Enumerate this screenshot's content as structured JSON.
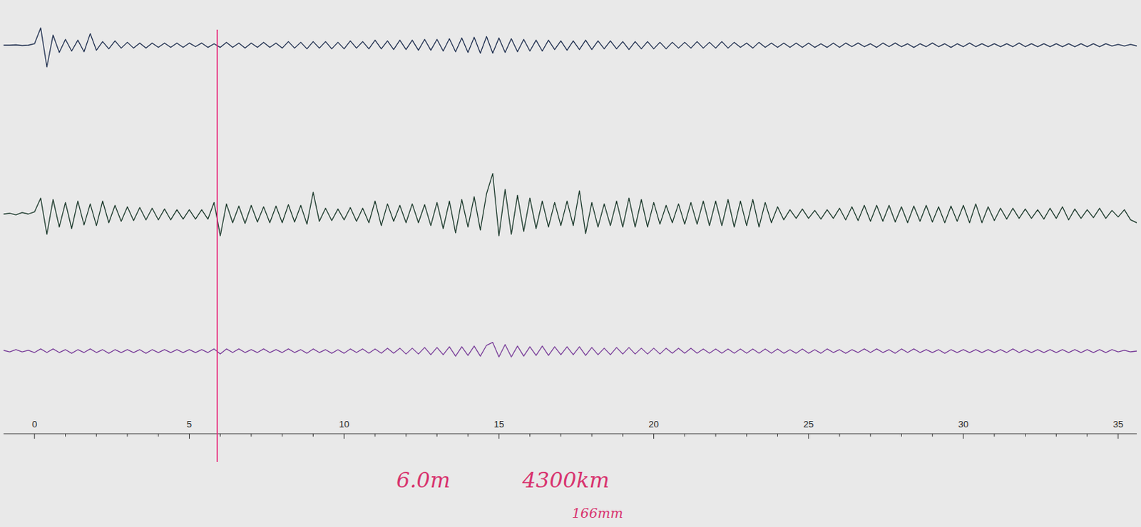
{
  "chart_data": {
    "type": "line",
    "x": [
      -1,
      -0.8,
      -0.6,
      -0.4,
      -0.2,
      0,
      0.2,
      0.4,
      0.6,
      0.8,
      1,
      1.2,
      1.4,
      1.6,
      1.8,
      2,
      2.2,
      2.4,
      2.6,
      2.8,
      3,
      3.2,
      3.4,
      3.6,
      3.8,
      4,
      4.2,
      4.4,
      4.6,
      4.8,
      5,
      5.2,
      5.4,
      5.6,
      5.8,
      6,
      6.2,
      6.4,
      6.6,
      6.8,
      7,
      7.2,
      7.4,
      7.6,
      7.8,
      8,
      8.2,
      8.4,
      8.6,
      8.8,
      9,
      9.2,
      9.4,
      9.6,
      9.8,
      10,
      10.2,
      10.4,
      10.6,
      10.8,
      11,
      11.2,
      11.4,
      11.6,
      11.8,
      12,
      12.2,
      12.4,
      12.6,
      12.8,
      13,
      13.2,
      13.4,
      13.6,
      13.8,
      14,
      14.2,
      14.4,
      14.6,
      14.8,
      15,
      15.2,
      15.4,
      15.6,
      15.8,
      16,
      16.2,
      16.4,
      16.6,
      16.8,
      17,
      17.2,
      17.4,
      17.6,
      17.8,
      18,
      18.2,
      18.4,
      18.6,
      18.8,
      19,
      19.2,
      19.4,
      19.6,
      19.8,
      20,
      20.2,
      20.4,
      20.6,
      20.8,
      21,
      21.2,
      21.4,
      21.6,
      21.8,
      22,
      22.2,
      22.4,
      22.6,
      22.8,
      23,
      23.2,
      23.4,
      23.6,
      23.8,
      24,
      24.2,
      24.4,
      24.6,
      24.8,
      25,
      25.2,
      25.4,
      25.6,
      25.8,
      26,
      26.2,
      26.4,
      26.6,
      26.8,
      27,
      27.2,
      27.4,
      27.6,
      27.8,
      28,
      28.2,
      28.4,
      28.6,
      28.8,
      29,
      29.2,
      29.4,
      29.6,
      29.8,
      30,
      30.2,
      30.4,
      30.6,
      30.8,
      31,
      31.2,
      31.4,
      31.6,
      31.8,
      32,
      32.2,
      32.4,
      32.6,
      32.8,
      33,
      33.2,
      33.4,
      33.6,
      33.8,
      34,
      34.2,
      34.4,
      34.6,
      34.8,
      35,
      35.2,
      35.4,
      35.6
    ],
    "series": [
      {
        "color": "#1f2f4f",
        "values": [
          0,
          0,
          0.5,
          -0.5,
          0,
          2,
          24,
          -30,
          14,
          -10,
          8,
          -8,
          7,
          -9,
          16,
          -7,
          5,
          -5,
          6,
          -4,
          4,
          -4,
          3,
          -4,
          3,
          -3,
          3,
          -3,
          3,
          -3,
          3,
          -2,
          3,
          -3,
          2,
          -3,
          4,
          -3,
          3,
          -4,
          3,
          -3,
          4,
          -3,
          3,
          -4,
          5,
          -4,
          4,
          -5,
          5,
          -4,
          5,
          -5,
          4,
          -5,
          6,
          -4,
          5,
          -5,
          7,
          -5,
          6,
          -6,
          7,
          -6,
          7,
          -7,
          8,
          -7,
          8,
          -8,
          9,
          -9,
          10,
          -10,
          11,
          -11,
          12,
          -11,
          10,
          -10,
          9,
          -9,
          8,
          -8,
          7,
          -8,
          7,
          -6,
          6,
          -7,
          6,
          -6,
          7,
          -6,
          6,
          -5,
          6,
          -5,
          5,
          -6,
          5,
          -5,
          5,
          -5,
          4,
          -5,
          4,
          -4,
          4,
          -4,
          5,
          -4,
          4,
          -4,
          5,
          -4,
          4,
          -3,
          3,
          -4,
          4,
          -3,
          3,
          -3,
          3,
          -3,
          3,
          -3,
          3,
          -3,
          2,
          -3,
          3,
          -3,
          3,
          -2,
          3,
          -2,
          2,
          -3,
          3,
          -2,
          3,
          -2,
          2,
          -3,
          2,
          -2,
          3,
          -2,
          2,
          -3,
          2,
          -2,
          3,
          -2,
          2,
          -2,
          2,
          -2,
          2,
          -2,
          3,
          -2,
          2,
          -2,
          2,
          -2,
          2,
          -2,
          2,
          -2,
          2,
          -2,
          2,
          -2,
          2,
          -1,
          1,
          -1,
          1,
          -1
        ]
      },
      {
        "color": "#1c3a2c",
        "values": [
          0,
          1,
          -1,
          2,
          0,
          3,
          22,
          -28,
          20,
          -18,
          16,
          -20,
          18,
          -15,
          14,
          -16,
          18,
          -12,
          12,
          -10,
          10,
          -9,
          9,
          -8,
          8,
          -8,
          7,
          -8,
          6,
          -7,
          6,
          -7,
          6,
          -7,
          16,
          -30,
          14,
          -12,
          11,
          -13,
          12,
          -11,
          10,
          -12,
          11,
          -12,
          13,
          -11,
          12,
          -14,
          30,
          -10,
          8,
          -9,
          7,
          -8,
          9,
          -10,
          8,
          -12,
          18,
          -16,
          14,
          -10,
          12,
          -12,
          14,
          -12,
          13,
          -16,
          16,
          -20,
          18,
          -26,
          20,
          -18,
          24,
          -22,
          28,
          56,
          -30,
          34,
          -28,
          26,
          -24,
          22,
          -20,
          18,
          -18,
          16,
          -16,
          18,
          -16,
          32,
          -27,
          16,
          -18,
          14,
          -16,
          18,
          -18,
          22,
          -18,
          20,
          -18,
          16,
          -14,
          12,
          -12,
          14,
          -14,
          16,
          -14,
          18,
          -16,
          18,
          -16,
          20,
          -18,
          18,
          -16,
          20,
          -18,
          16,
          -12,
          10,
          -8,
          6,
          -6,
          7,
          -6,
          5,
          -7,
          6,
          -6,
          8,
          -8,
          10,
          -9,
          12,
          -10,
          12,
          -10,
          12,
          -11,
          10,
          -12,
          11,
          -10,
          12,
          -11,
          10,
          -12,
          11,
          -10,
          12,
          -12,
          14,
          -12,
          10,
          -9,
          8,
          -7,
          8,
          -6,
          7,
          -6,
          6,
          -7,
          8,
          -6,
          10,
          -8,
          7,
          -6,
          6,
          -5,
          8,
          -6,
          5,
          -4,
          6,
          -8,
          -12
        ]
      },
      {
        "color": "#7a3f9a",
        "values": [
          1,
          -1,
          2,
          -1,
          1,
          -2,
          3,
          -2,
          3,
          -2,
          2,
          -3,
          2,
          -2,
          3,
          -2,
          2,
          -3,
          2,
          -2,
          2,
          -2,
          2,
          -3,
          2,
          -2,
          2,
          -2,
          2,
          -2,
          2,
          -2,
          2,
          -2,
          3,
          -4,
          3,
          -2,
          3,
          -2,
          2,
          -2,
          3,
          -2,
          2,
          -2,
          3,
          -2,
          2,
          -3,
          3,
          -2,
          2,
          -3,
          2,
          -3,
          3,
          -2,
          3,
          -3,
          3,
          -3,
          4,
          -3,
          4,
          -4,
          4,
          -4,
          5,
          -5,
          5,
          -5,
          6,
          -7,
          6,
          -6,
          7,
          -7,
          8,
          12,
          -8,
          9,
          -8,
          7,
          -7,
          6,
          -6,
          7,
          -6,
          6,
          -5,
          6,
          -5,
          6,
          -6,
          5,
          -5,
          4,
          -5,
          5,
          -4,
          5,
          -4,
          4,
          -4,
          4,
          -4,
          4,
          -3,
          4,
          -3,
          4,
          -3,
          3,
          -3,
          3,
          -3,
          3,
          -3,
          3,
          -3,
          3,
          -3,
          3,
          -3,
          3,
          -3,
          2,
          -3,
          3,
          -3,
          2,
          -3,
          3,
          -2,
          2,
          -3,
          2,
          -2,
          3,
          -2,
          3,
          -2,
          2,
          -3,
          3,
          -2,
          3,
          -2,
          2,
          -2,
          2,
          -3,
          2,
          -2,
          2,
          -2,
          2,
          -2,
          2,
          -2,
          2,
          -2,
          3,
          -2,
          2,
          -2,
          2,
          -2,
          2,
          -2,
          2,
          -2,
          2,
          -2,
          2,
          -2,
          2,
          -2,
          2,
          -1,
          1,
          -1,
          0
        ]
      }
    ],
    "xlim": [
      -1,
      35.6
    ],
    "xticks": [
      0,
      5,
      10,
      15,
      20,
      25,
      30,
      35
    ],
    "xminor": [
      1,
      2,
      3,
      4,
      6,
      7,
      8,
      9,
      11,
      12,
      13,
      14,
      16,
      17,
      18,
      19,
      21,
      22,
      23,
      24,
      26,
      27,
      28,
      29,
      31,
      32,
      33,
      34
    ],
    "ylim": [
      -60,
      60
    ],
    "tick_labels": "x",
    "vline": {
      "x": 5.9,
      "color": "#e8287a"
    },
    "annotations": [
      "6.0m",
      "4300km",
      "166mm"
    ],
    "annotation_color": "#d8336e"
  }
}
